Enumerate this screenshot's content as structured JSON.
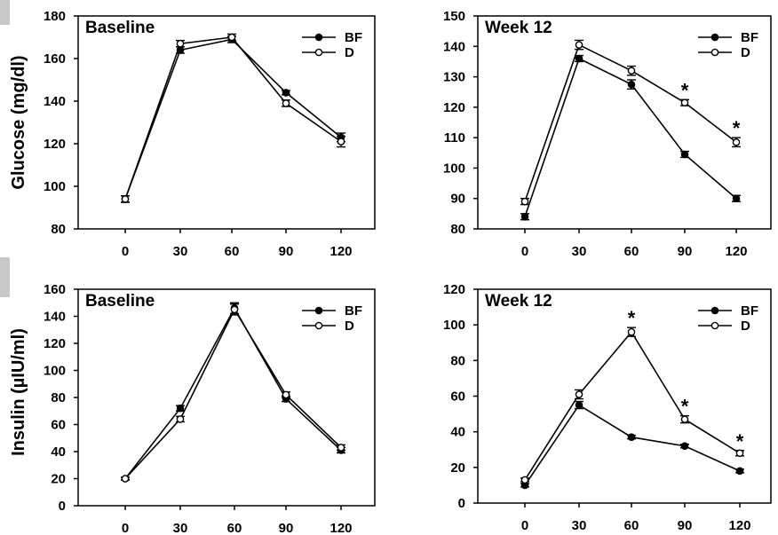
{
  "chart_data": [
    {
      "type": "line",
      "title": "Baseline",
      "ylabel": "Glucose (mg/dl)",
      "x": [
        0,
        30,
        60,
        90,
        120
      ],
      "xticks": [
        "0",
        "30",
        "60",
        "90",
        "120"
      ],
      "ylim": [
        80,
        180
      ],
      "yticks": [
        "80",
        "100",
        "120",
        "140",
        "160",
        "180"
      ],
      "legend_placement": "top-right",
      "series": [
        {
          "name": "BF",
          "marker": "filled-circle",
          "values": [
            94,
            164,
            169,
            144,
            123
          ],
          "errors": [
            1.5,
            1.5,
            1.5,
            1,
            2
          ]
        },
        {
          "name": "D",
          "marker": "open-circle",
          "values": [
            94,
            167,
            170,
            139,
            121
          ],
          "errors": [
            1.5,
            1.5,
            1.5,
            1.5,
            2.5
          ]
        }
      ],
      "significant": []
    },
    {
      "type": "line",
      "title": "Week 12",
      "ylabel": "",
      "x": [
        0,
        30,
        60,
        90,
        120
      ],
      "xticks": [
        "0",
        "30",
        "60",
        "90",
        "120"
      ],
      "ylim": [
        80,
        150
      ],
      "yticks": [
        "80",
        "90",
        "100",
        "110",
        "120",
        "130",
        "140",
        "150"
      ],
      "legend_placement": "top-right",
      "series": [
        {
          "name": "BF",
          "marker": "filled-circle",
          "values": [
            84,
            136,
            127.5,
            104.5,
            90
          ],
          "errors": [
            1,
            1,
            1.5,
            1,
            1
          ]
        },
        {
          "name": "D",
          "marker": "open-circle",
          "values": [
            89,
            140.5,
            132,
            121.5,
            108.5
          ],
          "errors": [
            1,
            1.5,
            1.5,
            1,
            1.5
          ]
        }
      ],
      "significant": [
        {
          "x": 90,
          "label": "*"
        },
        {
          "x": 120,
          "label": "*"
        }
      ]
    },
    {
      "type": "line",
      "title": "Baseline",
      "ylabel": "Insulin (µIU/ml)",
      "x": [
        0,
        30,
        60,
        90,
        120
      ],
      "xticks": [
        "0",
        "30",
        "60",
        "90",
        "120"
      ],
      "ylim": [
        0,
        160
      ],
      "yticks": [
        "0",
        "20",
        "40",
        "60",
        "80",
        "100",
        "120",
        "140",
        "160"
      ],
      "legend_placement": "top-right",
      "series": [
        {
          "name": "BF",
          "marker": "filled-circle",
          "values": [
            20,
            72,
            146,
            79,
            41
          ],
          "errors": [
            1,
            2,
            4,
            2,
            2
          ]
        },
        {
          "name": "D",
          "marker": "open-circle",
          "values": [
            20,
            64,
            145,
            82,
            43
          ],
          "errors": [
            1,
            2,
            4,
            2,
            2
          ]
        }
      ],
      "significant": []
    },
    {
      "type": "line",
      "title": "Week 12",
      "ylabel": "",
      "x": [
        0,
        30,
        60,
        90,
        120
      ],
      "xticks": [
        "0",
        "30",
        "60",
        "90",
        "120"
      ],
      "ylim": [
        0,
        120
      ],
      "yticks": [
        "0",
        "20",
        "40",
        "60",
        "80",
        "100",
        "120"
      ],
      "legend_placement": "top-right",
      "series": [
        {
          "name": "BF",
          "marker": "filled-circle",
          "values": [
            10,
            55,
            37,
            32,
            18
          ],
          "errors": [
            1,
            2,
            1,
            1,
            1
          ]
        },
        {
          "name": "D",
          "marker": "open-circle",
          "values": [
            13,
            61,
            96,
            47,
            28
          ],
          "errors": [
            1,
            2.5,
            2.5,
            2,
            1.5
          ]
        }
      ],
      "significant": [
        {
          "x": 60,
          "label": "*"
        },
        {
          "x": 90,
          "label": "*"
        },
        {
          "x": 120,
          "label": "*"
        }
      ]
    }
  ]
}
